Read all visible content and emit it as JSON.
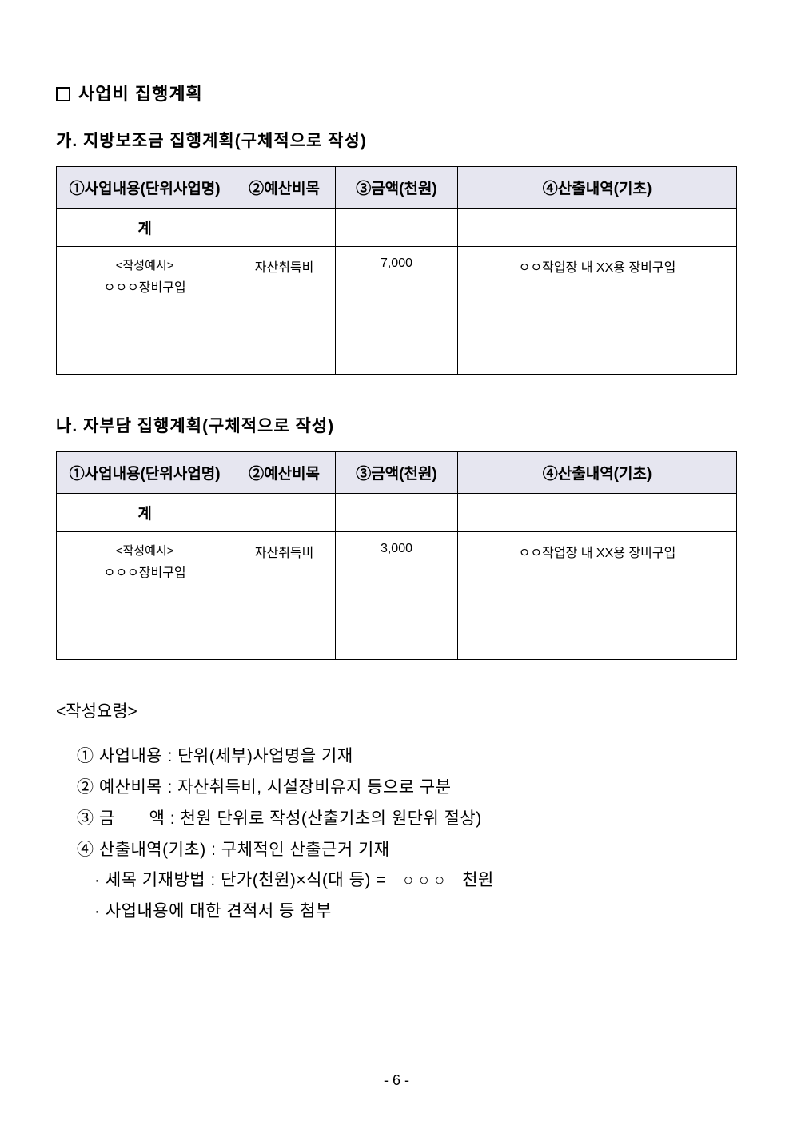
{
  "section_title": "사업비 집행계획",
  "table_a": {
    "title": "가. 지방보조금 집행계획(구체적으로 작성)",
    "headers": {
      "col1": "①사업내용(단위사업명)",
      "col2": "②예산비목",
      "col3": "③금액(천원)",
      "col4": "④산출내역(기초)"
    },
    "total_label": "계",
    "example": {
      "label": "<작성예시>",
      "content": "ㅇㅇㅇ장비구입",
      "budget_item": "자산취득비",
      "amount": "7,000",
      "basis": "ㅇㅇ작업장 내 XX용 장비구입"
    }
  },
  "table_b": {
    "title": "나. 자부담 집행계획(구체적으로 작성)",
    "headers": {
      "col1": "①사업내용(단위사업명)",
      "col2": "②예산비목",
      "col3": "③금액(천원)",
      "col4": "④산출내역(기초)"
    },
    "total_label": "계",
    "example": {
      "label": "<작성예시>",
      "content": "ㅇㅇㅇ장비구입",
      "budget_item": "자산취득비",
      "amount": "3,000",
      "basis": "ㅇㅇ작업장 내 XX용 장비구입"
    }
  },
  "guide": {
    "title": "<작성요령>",
    "items": [
      "① 사업내용 : 단위(세부)사업명을 기재",
      "② 예산비목 : 자산취득비, 시설장비유지 등으로 구분",
      "③ 금　　액 : 천원 단위로 작성(산출기초의 원단위 절상)",
      "④ 산출내역(기초) : 구체적인 산출근거 기재"
    ],
    "sub_items": [
      "· 세목 기재방법 : 단가(천원)×식(대 등) =　○ ○ ○　천원",
      "· 사업내용에 대한 견적서 등 첨부"
    ]
  },
  "page_number": "- 6 -"
}
